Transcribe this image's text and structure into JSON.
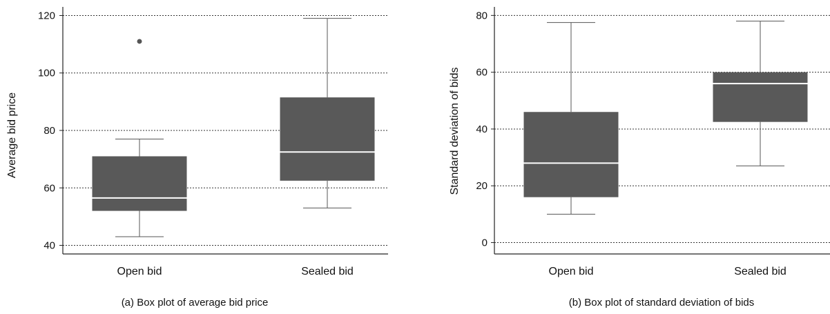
{
  "chart_data": [
    {
      "type": "box",
      "caption": "(a) Box plot of average bid price",
      "ylabel": "Average bid price",
      "xlabel": "",
      "categories": [
        "Open bid",
        "Sealed bid"
      ],
      "ylim": [
        37,
        123
      ],
      "yticks": [
        40,
        60,
        80,
        100,
        120
      ],
      "grid": "horizontal dotted",
      "boxes": [
        {
          "category": "Open bid",
          "whisker_low": 43,
          "q1": 52,
          "median": 56.5,
          "q3": 71,
          "whisker_high": 77,
          "outliers": [
            111
          ]
        },
        {
          "category": "Sealed bid",
          "whisker_low": 53,
          "q1": 62.5,
          "median": 72.5,
          "q3": 91.5,
          "whisker_high": 119,
          "outliers": []
        }
      ]
    },
    {
      "type": "box",
      "caption": "(b) Box plot of standard deviation of bids",
      "ylabel": "Standard deviation of bids",
      "xlabel": "",
      "categories": [
        "Open bid",
        "Sealed bid"
      ],
      "ylim": [
        -4,
        83
      ],
      "yticks": [
        0,
        20,
        40,
        60,
        80
      ],
      "grid": "horizontal dotted",
      "boxes": [
        {
          "category": "Open bid",
          "whisker_low": 10,
          "q1": 16,
          "median": 28,
          "q3": 46,
          "whisker_high": 77.5,
          "outliers": []
        },
        {
          "category": "Sealed bid",
          "whisker_low": 27,
          "q1": 42.5,
          "median": 56,
          "q3": 60,
          "whisker_high": 78,
          "outliers": []
        }
      ]
    }
  ],
  "colors": {
    "box_fill": "#595959",
    "median_line": "#ffffff",
    "whisker": "#555555",
    "outlier": "#555555",
    "grid": "#333333",
    "axis": "#222222"
  }
}
